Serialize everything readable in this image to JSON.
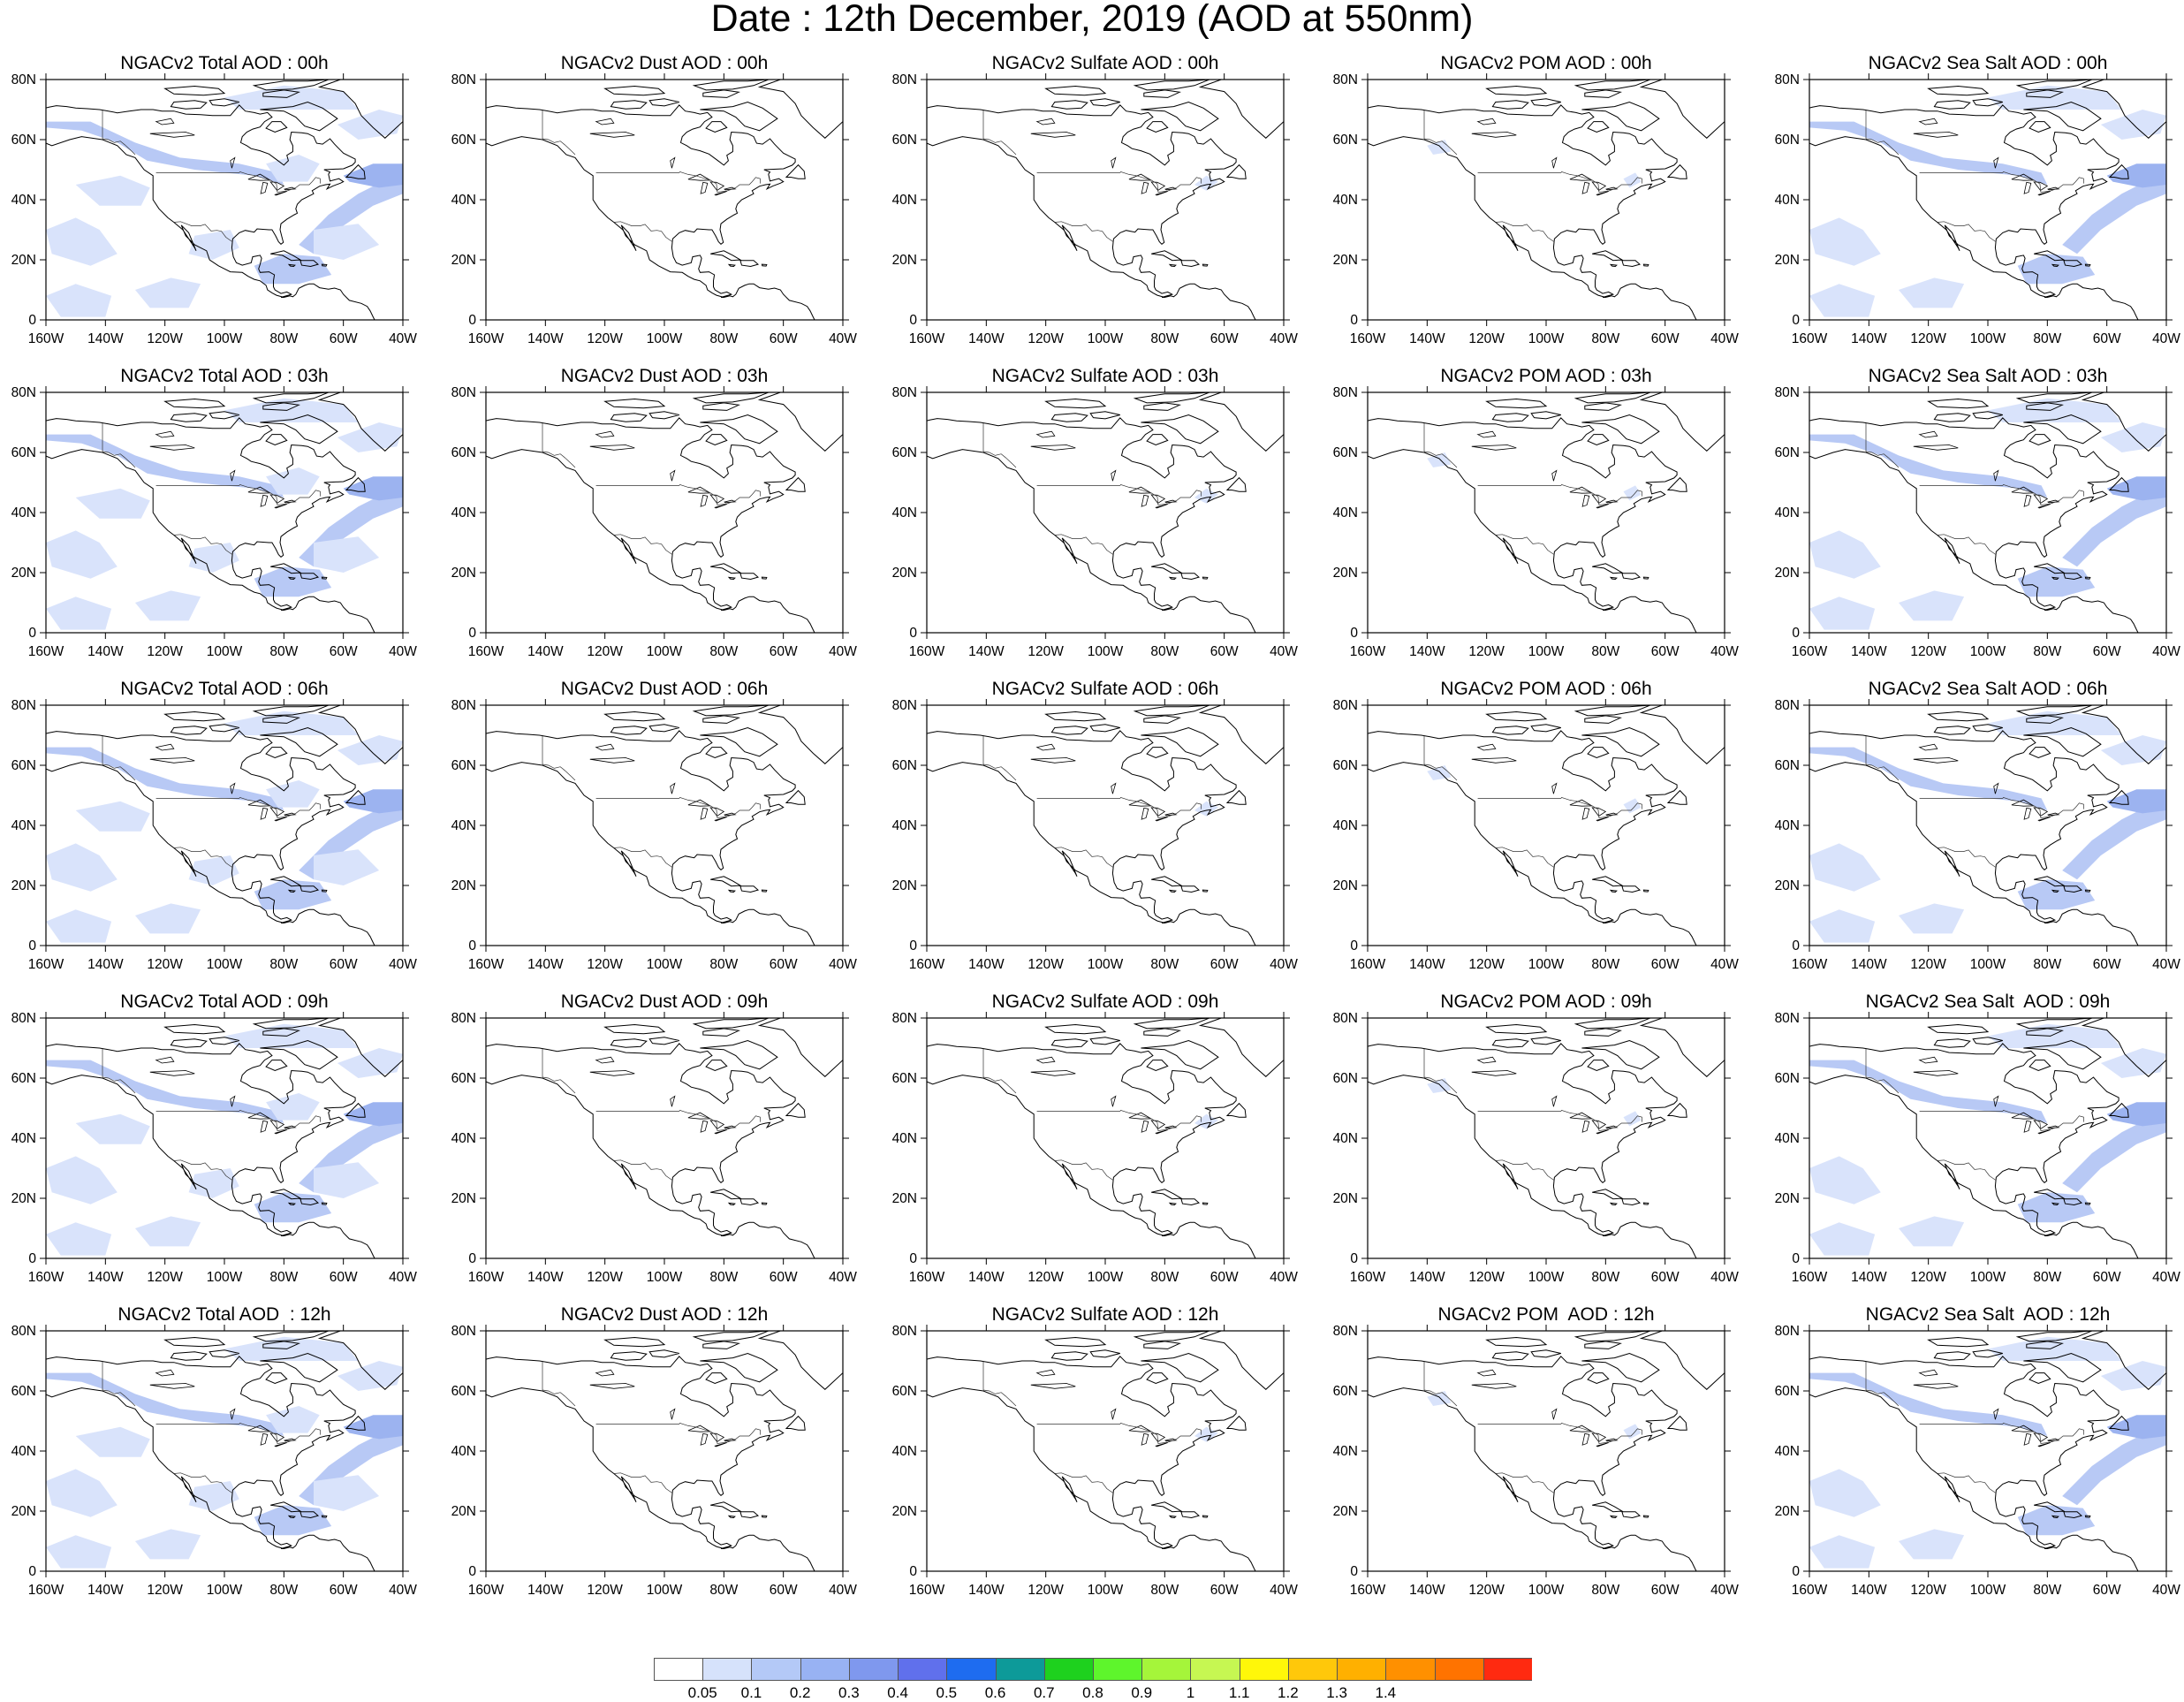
{
  "title": "Date : 12th December, 2019 (AOD at 550nm)",
  "axes": {
    "x_ticks": [
      "160W",
      "140W",
      "120W",
      "100W",
      "80W",
      "60W",
      "40W"
    ],
    "y_ticks": [
      "0",
      "20N",
      "40N",
      "60N",
      "80N"
    ]
  },
  "rows": [
    {
      "titles": [
        "NGACv2 Total AOD : 00h",
        "NGACv2 Dust AOD : 00h",
        "NGACv2 Sulfate AOD : 00h",
        "NGACv2 POM AOD : 00h",
        "NGACv2 Sea Salt AOD : 00h"
      ]
    },
    {
      "titles": [
        "NGACv2 Total AOD : 03h",
        "NGACv2 Dust AOD : 03h",
        "NGACv2 Sulfate AOD : 03h",
        "NGACv2 POM AOD : 03h",
        "NGACv2 Sea Salt AOD : 03h"
      ]
    },
    {
      "titles": [
        "NGACv2 Total AOD : 06h",
        "NGACv2 Dust AOD : 06h",
        "NGACv2 Sulfate AOD : 06h",
        "NGACv2 POM AOD : 06h",
        "NGACv2 Sea Salt AOD : 06h"
      ]
    },
    {
      "titles": [
        "NGACv2 Total AOD : 09h",
        "NGACv2 Dust AOD : 09h",
        "NGACv2 Sulfate AOD : 09h",
        "NGACv2 POM AOD : 09h",
        "NGACv2 Sea Salt  AOD : 09h"
      ]
    },
    {
      "titles": [
        "NGACv2 Total AOD  : 12h",
        "NGACv2 Dust AOD : 12h",
        "NGACv2 Sulfate AOD : 12h",
        "NGACv2 POM  AOD : 12h",
        "NGACv2 Sea Salt  AOD : 12h"
      ]
    }
  ],
  "colorbar": {
    "labels": [
      "0.05",
      "0.1",
      "0.2",
      "0.3",
      "0.4",
      "0.5",
      "0.6",
      "0.7",
      "0.8",
      "0.9",
      "1",
      "1.1",
      "1.2",
      "1.3",
      "1.4"
    ],
    "colors": [
      "#ffffff",
      "#d6e2fb",
      "#b4c9f7",
      "#98b2f3",
      "#7f98ee",
      "#6070ec",
      "#1e6cf0",
      "#0d9a99",
      "#1ed11e",
      "#5ef52c",
      "#a5f53a",
      "#c6f752",
      "#fff709",
      "#ffc80a",
      "#ffb000",
      "#ff9000",
      "#ff7300",
      "#ff2a10"
    ]
  },
  "shading": {
    "colors": [
      "#d9e3fb",
      "#b8c9f5",
      "#9cb3f0"
    ]
  }
}
